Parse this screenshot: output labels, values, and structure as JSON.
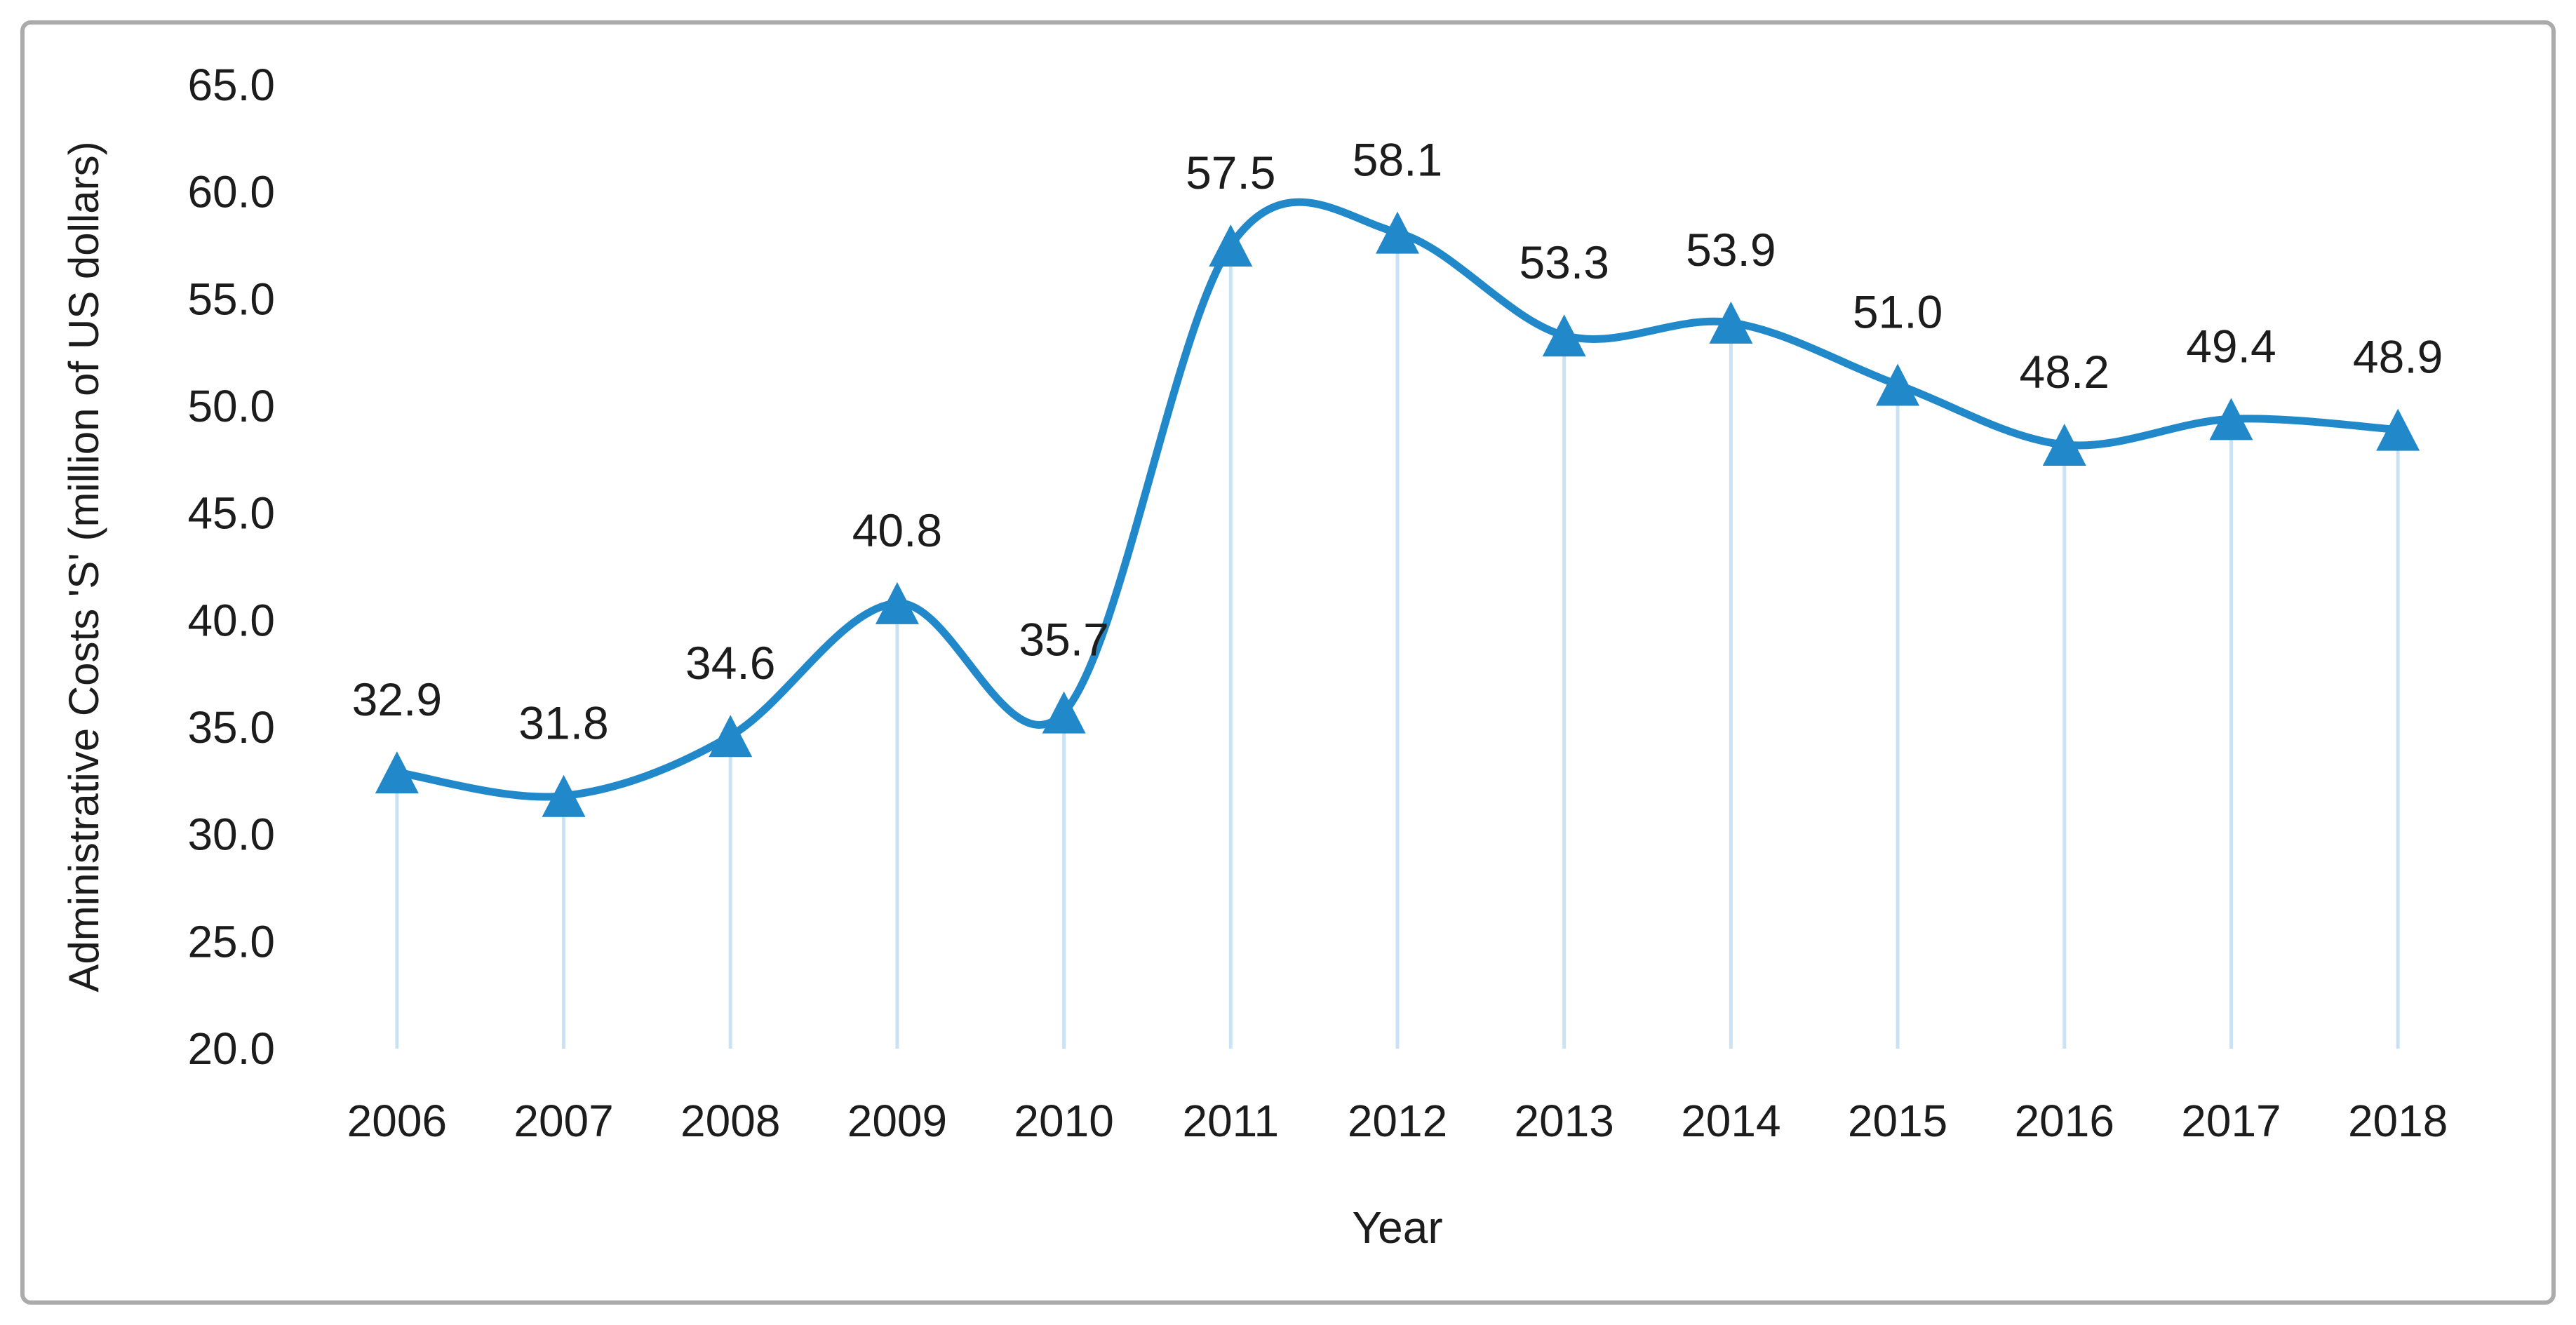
{
  "chart_data": {
    "type": "line",
    "title": "",
    "categories": [
      "2006",
      "2007",
      "2008",
      "2009",
      "2010",
      "2011",
      "2012",
      "2013",
      "2014",
      "2015",
      "2016",
      "2017",
      "2018"
    ],
    "values": [
      32.9,
      31.8,
      34.6,
      40.8,
      35.7,
      57.5,
      58.1,
      53.3,
      53.9,
      51.0,
      48.2,
      49.4,
      48.9
    ],
    "data_labels": [
      "32.9",
      "31.8",
      "34.6",
      "40.8",
      "35.7",
      "57.5",
      "58.1",
      "53.3",
      "53.9",
      "51.0",
      "48.2",
      "49.4",
      "48.9"
    ],
    "xlabel": "Year",
    "ylabel": "Administrative Costs 'S' (million of US dollars)",
    "ylim": [
      20,
      65
    ],
    "ytick_step": 5,
    "ytick_labels": [
      "20.0",
      "25.0",
      "30.0",
      "35.0",
      "40.0",
      "45.0",
      "50.0",
      "55.0",
      "60.0",
      "65.0"
    ],
    "grid": "none",
    "legend_position": "none",
    "smooth_line": true,
    "marker": "triangle-up",
    "drop_lines": true,
    "colors": {
      "line": "#2189CA",
      "marker": "#2189CA",
      "drop_line": "#C9E3F5",
      "text": "#1c1c1c",
      "frame_border": "#ABABAB",
      "background": "#ffffff"
    }
  }
}
